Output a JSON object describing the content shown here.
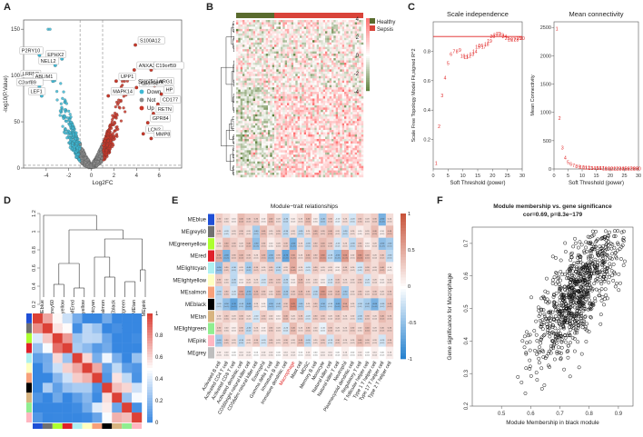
{
  "panel_labels": [
    "A",
    "B",
    "C",
    "D",
    "E",
    "F"
  ],
  "chart_data": [
    {
      "id": "A",
      "type": "scatter",
      "title": "",
      "xlabel": "Log2FC",
      "ylabel": "-log10(P.Value)",
      "xlim": [
        -6,
        8
      ],
      "ylim": [
        0,
        160
      ],
      "x_ticks": [
        -4,
        -2,
        0,
        2,
        4,
        6
      ],
      "y_ticks": [
        0,
        50,
        100,
        150
      ],
      "thresholds": {
        "logfc": [
          -1,
          1
        ],
        "pval_line": 3
      },
      "legend": {
        "title": "Significant",
        "entries": [
          {
            "label": "Down",
            "color": "#3fb8d4"
          },
          {
            "label": "Not",
            "color": "#8c8c8c"
          },
          {
            "label": "Up",
            "color": "#c8382a"
          }
        ],
        "position": "right-middle"
      },
      "gene_labels": [
        {
          "name": "P2RY10",
          "x": -4.6,
          "y": 122
        },
        {
          "name": "EPHX2",
          "x": -2.6,
          "y": 118
        },
        {
          "name": "NELL2",
          "x": -3.2,
          "y": 111
        },
        {
          "name": "LRRN3",
          "x": -4.8,
          "y": 97
        },
        {
          "name": "ABLIM1",
          "x": -3.4,
          "y": 94
        },
        {
          "name": "C2orf89",
          "x": -4.6,
          "y": 88
        },
        {
          "name": "LEF1",
          "x": -4.4,
          "y": 78
        },
        {
          "name": "S100A12",
          "x": 3.9,
          "y": 133
        },
        {
          "name": "ANXA3",
          "x": 3.8,
          "y": 106
        },
        {
          "name": "C19orf59",
          "x": 5.3,
          "y": 106
        },
        {
          "name": "UPP1",
          "x": 2.2,
          "y": 94
        },
        {
          "name": "C5orf32",
          "x": 4.0,
          "y": 87
        },
        {
          "name": "ARG1",
          "x": 5.6,
          "y": 89
        },
        {
          "name": "MAPK14",
          "x": 1.5,
          "y": 78
        },
        {
          "name": "HP",
          "x": 6.2,
          "y": 80
        },
        {
          "name": "CD177",
          "x": 5.9,
          "y": 69
        },
        {
          "name": "RETN",
          "x": 5.5,
          "y": 59
        },
        {
          "name": "GPR84",
          "x": 5.0,
          "y": 49
        },
        {
          "name": "LCN2",
          "x": 4.6,
          "y": 37
        },
        {
          "name": "MMP8",
          "x": 5.3,
          "y": 32
        }
      ]
    },
    {
      "id": "B",
      "type": "heatmap",
      "title": "",
      "legend": {
        "entries": [
          {
            "label": "Healthy",
            "color": "#5a6b2e"
          },
          {
            "label": "Sepsis",
            "color": "#d9443a"
          }
        ]
      },
      "colorbar_ticks": [
        4,
        2,
        0,
        -2,
        -4
      ],
      "groups": [
        {
          "name": "Healthy",
          "fraction": 0.3
        },
        {
          "name": "Sepsis",
          "fraction": 0.7
        }
      ]
    },
    {
      "id": "C1",
      "type": "scatter",
      "title": "Scale independence",
      "xlabel": "Soft Threshold (power)",
      "ylabel": "Scale Free Topology Model Fit,signed R^2",
      "xlim": [
        0,
        30
      ],
      "ylim": [
        0,
        1.0
      ],
      "x_ticks": [
        0,
        5,
        10,
        15,
        20,
        25,
        30
      ],
      "y_ticks": [
        0.2,
        0.4,
        0.6,
        0.8
      ],
      "hline": 0.9,
      "x": [
        1,
        2,
        3,
        4,
        5,
        6,
        7,
        8,
        9,
        10,
        11,
        12,
        13,
        14,
        15,
        16,
        17,
        18,
        19,
        20,
        21,
        22,
        23,
        24,
        25,
        26,
        27,
        28,
        29,
        30
      ],
      "y": [
        0.04,
        0.29,
        0.5,
        0.62,
        0.72,
        0.78,
        0.8,
        0.8,
        0.81,
        0.77,
        0.76,
        0.77,
        0.78,
        0.8,
        0.83,
        0.84,
        0.83,
        0.85,
        0.87,
        0.9,
        0.91,
        0.92,
        0.91,
        0.9,
        0.89,
        0.88,
        0.88,
        0.88,
        0.89,
        0.89
      ]
    },
    {
      "id": "C2",
      "type": "scatter",
      "title": "Mean connectivity",
      "xlabel": "Soft Threshold (power)",
      "ylabel": "Mean Connectivity",
      "xlim": [
        0,
        30
      ],
      "ylim": [
        0,
        2600
      ],
      "x_ticks": [
        0,
        5,
        10,
        15,
        20,
        25,
        30
      ],
      "y_ticks": [
        0,
        500,
        1000,
        1500,
        2000,
        2500
      ],
      "x": [
        1,
        2,
        3,
        4,
        5,
        6,
        7,
        8,
        9,
        10,
        11,
        12,
        13,
        14,
        15,
        16,
        17,
        18,
        19,
        20,
        21,
        22,
        23,
        24,
        25,
        26,
        27,
        28,
        29,
        30
      ],
      "y": [
        2480,
        900,
        380,
        200,
        120,
        85,
        65,
        50,
        40,
        32,
        27,
        23,
        20,
        18,
        16,
        14,
        13,
        12,
        11,
        10,
        9,
        9,
        8,
        8,
        7,
        7,
        6,
        6,
        6,
        5
      ]
    },
    {
      "id": "D",
      "type": "heatmap",
      "title": "",
      "modules": [
        "MEblue",
        "MEgrey60",
        "MEgreenyellow",
        "MEred",
        "MElightcyan",
        "MElightyellow",
        "MEsalmon",
        "MEblack",
        "MEtan",
        "MElightgreen",
        "MEpink"
      ],
      "module_colors": [
        "#1f4fd6",
        "#707070",
        "#adff2f",
        "#e0202a",
        "#aef0f0",
        "#ffffc0",
        "#f7a07a",
        "#000000",
        "#d8b480",
        "#90ee90",
        "#ffb6c1"
      ],
      "y_ticks": [
        0.2,
        0.4,
        0.6,
        0.8,
        1.0,
        1.2
      ],
      "colorbar_ticks": [
        1,
        0.8,
        0.6,
        0.4,
        0.2,
        0
      ],
      "dendro_leaves": [
        "MEblue",
        "MEgrey60",
        "MEgreenyellow",
        "MEred",
        "MElightyellow",
        "MElightcyan",
        "MEsalmon",
        "MEblack",
        "MElightgreen",
        "MEtan",
        "MEpink"
      ]
    },
    {
      "id": "E",
      "type": "heatmap",
      "title": "Module−trait relationships",
      "rows": [
        "MEblue",
        "MEgrey60",
        "MEgreenyellow",
        "MEred",
        "MElightcyan",
        "MElightyellow",
        "MEsalmon",
        "MEblack",
        "MEtan",
        "MElightgreen",
        "MEpink",
        "MEgrey"
      ],
      "row_colors": [
        "#1f4fd6",
        "#707070",
        "#adff2f",
        "#e0202a",
        "#aef0f0",
        "#ffffc0",
        "#f7a07a",
        "#000000",
        "#d8b480",
        "#90ee90",
        "#ffb6c1",
        "#bebebe"
      ],
      "columns": [
        "Activated B cell",
        "Activated CD4 T cell",
        "Activated CD8 T cell",
        "Activated dendritic cell",
        "CD56bright natural killer cell",
        "CD56dim natural killer cell",
        "Eosinophil",
        "Gamma delta T cell",
        "Immature B cell",
        "Immature dendritic cell",
        "Macrophage",
        "Mast cell",
        "MDSC",
        "Memory B cell",
        "Monocyte",
        "Natural killer cell",
        "Natural killer T cell",
        "Neutrophil",
        "Plasmacytoid dendritic cell",
        "Regulatory T cell",
        "T follicular helper cell",
        "Type 1 T helper cell",
        "Type 17 T helper cell",
        "Type 2 T helper cell"
      ],
      "highlight_column": "Macrophage",
      "colorbar_ticks": [
        1,
        0.5,
        0,
        -0.5,
        -1
      ],
      "values": [
        [
          0.3,
          0.2,
          0.1,
          0.4,
          0.3,
          0.3,
          0.1,
          0.4,
          0.2,
          -0.3,
          0.1,
          0.2,
          0.4,
          0.1,
          -0.4,
          0.3,
          -0.1,
          0.2,
          -0.2,
          0.3,
          0.2,
          0.3,
          -0.6,
          0.2
        ],
        [
          0.3,
          -0.2,
          0.2,
          0.3,
          0.2,
          -0.4,
          0.4,
          0.2,
          0.3,
          -0.3,
          0.2,
          -0.3,
          0.2,
          0.4,
          0.3,
          0.4,
          0.2,
          -0.3,
          0.2,
          0.1,
          0.2,
          0.4,
          0.1,
          0.4
        ],
        [
          0.2,
          0.4,
          0.3,
          0.2,
          0.4,
          -0.5,
          0.3,
          0.1,
          0.2,
          0.3,
          -0.6,
          0.2,
          -0.3,
          0.3,
          0.4,
          0.3,
          -0.2,
          0.2,
          -0.3,
          0.3,
          0.1,
          0.2,
          -0.5,
          -0.4
        ],
        [
          0.5,
          -0.6,
          0.3,
          0.4,
          0.3,
          0.2,
          0.4,
          -0.5,
          0.3,
          -0.7,
          0.5,
          0.2,
          0.4,
          0.3,
          0.6,
          -0.3,
          -0.5,
          0.6,
          0.2,
          0.6,
          0.4,
          0.2,
          0.3,
          -0.3
        ],
        [
          -0.5,
          0.3,
          -0.3,
          0.2,
          -0.4,
          0.3,
          0.2,
          0.3,
          -0.3,
          0.2,
          0.5,
          0.2,
          -0.2,
          0.3,
          0.2,
          0.2,
          0.1,
          0.3,
          0.2,
          -0.2,
          0.3,
          0.2,
          0.4,
          0.1
        ],
        [
          0.3,
          0.2,
          -0.3,
          0.1,
          0.2,
          0.2,
          -0.2,
          0.3,
          0.3,
          -0.3,
          0.1,
          0.4,
          0.2,
          0.2,
          0.1,
          -0.2,
          0.3,
          0.2,
          0.2,
          0.3,
          -0.2,
          0.2,
          0.1,
          0.2
        ],
        [
          -0.3,
          0.3,
          -0.2,
          0.5,
          -0.5,
          0.4,
          0.3,
          0.2,
          0.4,
          -0.4,
          0.3,
          0.4,
          0.3,
          -0.3,
          0.6,
          0.3,
          0.4,
          -0.4,
          0.2,
          0.3,
          0.2,
          0.3,
          0.2,
          0.3
        ],
        [
          -0.3,
          -0.5,
          -0.7,
          -0.4,
          -0.6,
          0.2,
          0.1,
          -0.5,
          -0.4,
          0.3,
          0.7,
          -0.4,
          0.2,
          0.3,
          -0.5,
          -0.3,
          -0.6,
          0.5,
          0.2,
          -0.3,
          -0.4,
          -0.6,
          -0.3,
          0.4
        ],
        [
          0.2,
          0.3,
          0.2,
          0.3,
          0.2,
          -0.2,
          0.3,
          0.2,
          0.1,
          0.4,
          0.2,
          0.3,
          -0.2,
          0.3,
          0.3,
          0.2,
          0.3,
          0.2,
          0.2,
          -0.3,
          0.3,
          0.2,
          0.4,
          0.3
        ],
        [
          0.3,
          0.2,
          0.1,
          0.3,
          -0.3,
          0.2,
          0.1,
          0.3,
          0.2,
          -0.2,
          0.4,
          0.2,
          0.3,
          0.2,
          -0.1,
          0.3,
          0.2,
          0.2,
          0.3,
          0.2,
          0.4,
          0.2,
          0.3,
          0.3
        ],
        [
          -0.4,
          0.3,
          0.2,
          -0.3,
          0.2,
          0.3,
          -0.2,
          0.3,
          0.2,
          0.3,
          0.2,
          0.4,
          -0.3,
          0.2,
          0.3,
          -0.2,
          0.3,
          0.2,
          0.2,
          0.4,
          0.3,
          0.2,
          -0.2,
          0.3
        ],
        [
          0.1,
          0.1,
          0.0,
          0.1,
          0.1,
          0.0,
          0.1,
          0.1,
          0.0,
          0.1,
          0.1,
          0.0,
          0.1,
          0.0,
          0.1,
          0.1,
          0.0,
          0.1,
          0.0,
          0.1,
          0.0,
          0.1,
          0.0,
          0.1
        ]
      ]
    },
    {
      "id": "F",
      "type": "scatter",
      "title": "Module membership vs. gene significance",
      "subtitle": "cor=0.69, p=8.3e−179",
      "xlabel": "Module Membership in black module",
      "ylabel": "Gene significance for Macrophage",
      "xlim": [
        0.4,
        0.95
      ],
      "ylim": [
        0.2,
        0.75
      ],
      "x_ticks": [
        0.5,
        0.6,
        0.7,
        0.8,
        0.9
      ],
      "y_ticks": [
        0.2,
        0.3,
        0.4,
        0.5,
        0.6,
        0.7
      ],
      "slope": 0.69,
      "n_points": 900
    }
  ]
}
